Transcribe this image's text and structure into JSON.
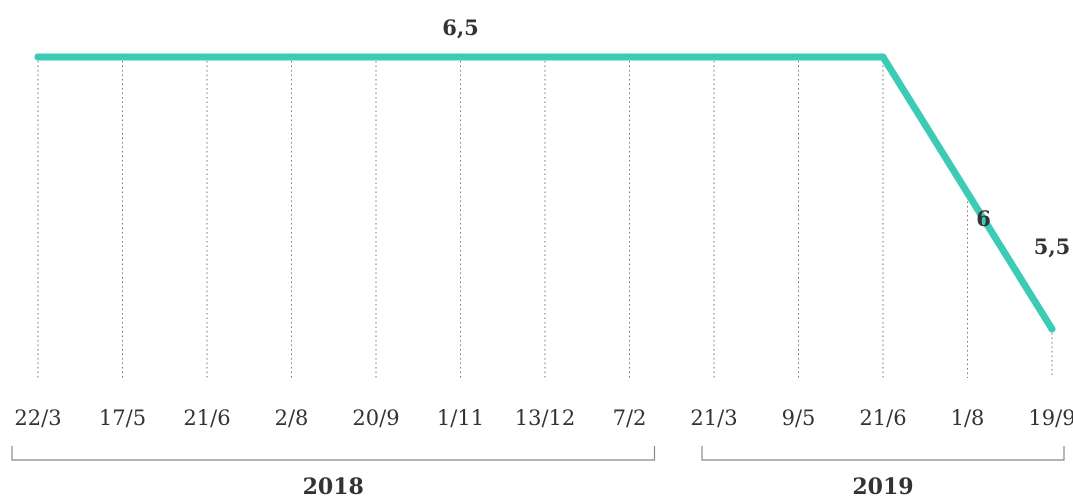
{
  "chart_data": {
    "type": "line",
    "categories": [
      "22/3",
      "17/5",
      "21/6",
      "2/8",
      "20/9",
      "1/11",
      "13/12",
      "7/2",
      "21/3",
      "9/5",
      "21/6",
      "1/8",
      "19/9"
    ],
    "series": [
      {
        "values": [
          6.5,
          6.5,
          6.5,
          6.5,
          6.5,
          6.5,
          6.5,
          6.5,
          6.5,
          6.5,
          6.5,
          6.0,
          5.5
        ]
      }
    ],
    "data_labels": [
      {
        "index": 5,
        "text": "6,5"
      },
      {
        "index": 11,
        "text": "6"
      },
      {
        "index": 12,
        "text": "5,5"
      }
    ],
    "year_groups": [
      {
        "label": "2018",
        "from": 0,
        "to": 7
      },
      {
        "label": "2019",
        "from": 8,
        "to": 12
      }
    ],
    "colors": {
      "line": "#3ccbb4",
      "text": "#333333",
      "grid": "#777777"
    },
    "grid": "vertical-dotted",
    "legend": "none"
  }
}
